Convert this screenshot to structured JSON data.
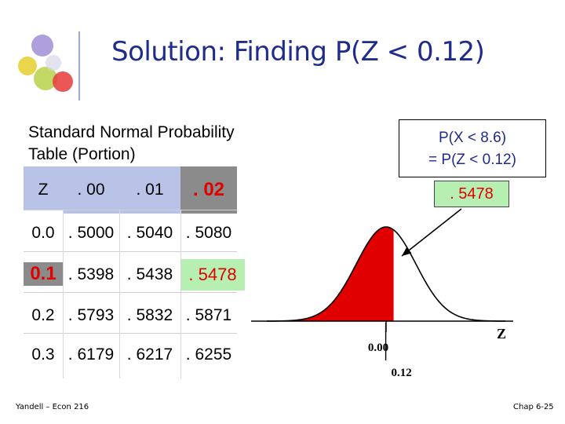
{
  "slide": {
    "title": "Solution: Finding P(Z < 0.12)",
    "caption_line1": "Standard Normal Probability",
    "caption_line2": "Table (Portion)",
    "right_box_line1": "P(X < 8.6)",
    "right_box_line2": "= P(Z < 0.12)",
    "result": ". 5478",
    "footer_left": "Yandell – Econ 216",
    "footer_right": "Chap 6-25"
  },
  "table": {
    "headers": [
      "Z",
      ". 00",
      ". 01",
      ". 02"
    ],
    "rows": [
      {
        "z": "0.0",
        "values": [
          ". 5000",
          ". 5040",
          ". 5080"
        ]
      },
      {
        "z": "0.1",
        "values": [
          ". 5398",
          ". 5438",
          ". 5478"
        ]
      },
      {
        "z": "0.2",
        "values": [
          ". 5793",
          ". 5832",
          ". 5871"
        ]
      },
      {
        "z": "0.3",
        "values": [
          ". 6179",
          ". 6217",
          ". 6255"
        ]
      }
    ],
    "highlight": {
      "row": 1,
      "col": 2
    }
  },
  "curve": {
    "axis_label": "Z",
    "tick_mean": "0.00",
    "tick_value": "0.12",
    "mean_z": 0.0,
    "shade_to_z": 0.12,
    "fill_color": "#e00000"
  },
  "colors": {
    "title": "#1f2c8c",
    "header_bg": "#b9c3e8",
    "highlight_header_bg": "#8b8b8b",
    "highlight_value_bg": "#b7efb2",
    "highlight_text": "#e00000"
  }
}
